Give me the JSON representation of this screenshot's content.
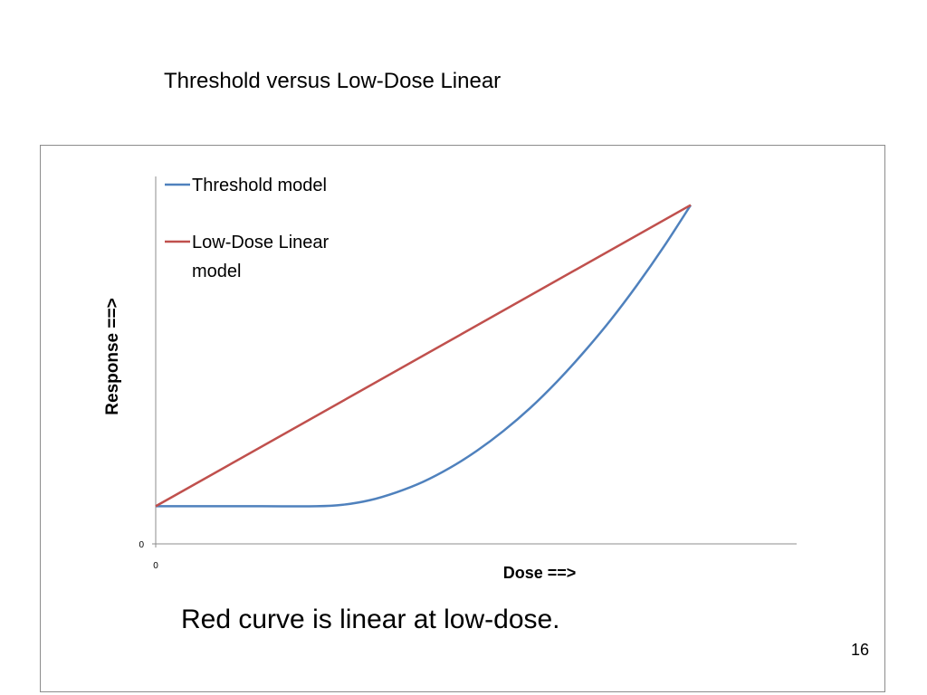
{
  "slide": {
    "title": "Threshold versus Low-Dose Linear",
    "caption": "Red curve is linear at low-dose.",
    "page_number": "16"
  },
  "chart_data": {
    "type": "line",
    "title": "",
    "xlabel": "Dose ==>",
    "ylabel": "Response ==>",
    "x_tick_labels": [
      "0"
    ],
    "y_tick_labels": [
      "0"
    ],
    "xlim": [
      0,
      10
    ],
    "ylim": [
      0,
      10
    ],
    "grid": false,
    "legend_position": "top-left",
    "series": [
      {
        "name": "Threshold model",
        "color": "#4f81bd",
        "x": [
          0,
          1,
          2,
          3,
          3.5,
          4,
          4.5,
          5,
          5.5,
          6,
          6.5,
          7,
          7.5,
          8,
          8.5,
          9,
          9.5,
          10
        ],
        "y": [
          1,
          1,
          1,
          1,
          1.04,
          1.16,
          1.37,
          1.65,
          2.02,
          2.47,
          3.0,
          3.61,
          4.31,
          5.09,
          5.94,
          6.88,
          7.9,
          9.0
        ]
      },
      {
        "name": "Low-Dose Linear model",
        "color": "#c0504d",
        "x": [
          0,
          10
        ],
        "y": [
          1,
          9.0
        ]
      }
    ]
  }
}
